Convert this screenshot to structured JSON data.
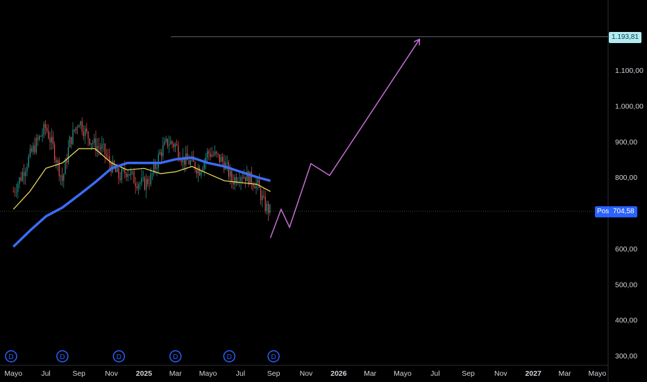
{
  "chart_data": {
    "type": "line",
    "title": "",
    "ylim": [
      280,
      1290
    ],
    "y_ticks": [
      "1.100,00",
      "1.000,00",
      "900,00",
      "800,00",
      "700,00",
      "600,00",
      "500,00",
      "400,00",
      "300,00"
    ],
    "y_tick_values": [
      1100,
      1000,
      900,
      800,
      700,
      600,
      500,
      400,
      300
    ],
    "x_ticks": [
      "Mayo",
      "Jul",
      "Sep",
      "Nov",
      "2025",
      "Mar",
      "Mayo",
      "Jul",
      "Sep",
      "Nov",
      "2026",
      "Mar",
      "Mayo",
      "Jul",
      "Sep",
      "Nov",
      "2027",
      "Mar",
      "Mayo"
    ],
    "x_ticks_bold": [
      false,
      false,
      false,
      false,
      true,
      false,
      false,
      false,
      false,
      false,
      true,
      false,
      false,
      false,
      false,
      false,
      true,
      false,
      false
    ],
    "x_tick_dates": [
      "2024-05-01",
      "2024-07-01",
      "2024-09-01",
      "2024-11-01",
      "2025-01-01",
      "2025-03-01",
      "2025-05-01",
      "2025-07-01",
      "2025-09-01",
      "2025-11-01",
      "2026-01-01",
      "2026-03-01",
      "2026-05-01",
      "2026-07-01",
      "2026-09-01",
      "2026-11-01",
      "2027-01-01",
      "2027-03-01",
      "2027-05-01"
    ],
    "price_series": {
      "name": "",
      "x": [
        "2024-05-01",
        "2024-05-15",
        "2024-06-01",
        "2024-06-15",
        "2024-07-01",
        "2024-07-15",
        "2024-08-01",
        "2024-08-15",
        "2024-09-01",
        "2024-09-15",
        "2024-10-01",
        "2024-10-15",
        "2024-11-01",
        "2024-11-15",
        "2024-12-01",
        "2024-12-15",
        "2025-01-01",
        "2025-01-15",
        "2025-02-01",
        "2025-02-15",
        "2025-03-01",
        "2025-03-15",
        "2025-04-01",
        "2025-04-15",
        "2025-05-01",
        "2025-05-15",
        "2025-06-01",
        "2025-06-15",
        "2025-07-01",
        "2025-07-15",
        "2025-08-01",
        "2025-08-15",
        "2025-08-26"
      ],
      "y": [
        760,
        800,
        860,
        900,
        940,
        880,
        790,
        900,
        960,
        920,
        890,
        880,
        830,
        800,
        820,
        790,
        780,
        800,
        870,
        900,
        890,
        850,
        840,
        820,
        870,
        860,
        840,
        790,
        810,
        800,
        780,
        720,
        705
      ]
    },
    "ma_fast": {
      "name": "",
      "color": "#f5e663",
      "x": [
        "2024-05-01",
        "2024-06-01",
        "2024-07-01",
        "2024-08-01",
        "2024-09-01",
        "2024-10-01",
        "2024-11-01",
        "2024-12-01",
        "2025-01-01",
        "2025-02-01",
        "2025-03-01",
        "2025-04-01",
        "2025-05-01",
        "2025-06-01",
        "2025-07-01",
        "2025-08-01",
        "2025-08-26"
      ],
      "y": [
        710,
        760,
        825,
        840,
        880,
        880,
        840,
        820,
        825,
        810,
        815,
        830,
        810,
        790,
        785,
        780,
        760
      ]
    },
    "ma_slow": {
      "name": "",
      "color": "#3b6cf6",
      "x": [
        "2024-05-01",
        "2024-06-01",
        "2024-07-01",
        "2024-08-01",
        "2024-09-01",
        "2024-10-01",
        "2024-11-01",
        "2024-12-01",
        "2025-01-01",
        "2025-02-01",
        "2025-03-01",
        "2025-04-01",
        "2025-05-01",
        "2025-06-01",
        "2025-07-01",
        "2025-08-01",
        "2025-08-26"
      ],
      "y": [
        605,
        650,
        690,
        715,
        750,
        785,
        825,
        840,
        840,
        840,
        850,
        855,
        840,
        830,
        815,
        800,
        790
      ]
    },
    "projection": {
      "color": "#c86fd8",
      "x": [
        "2025-08-26",
        "2025-09-15",
        "2025-10-01",
        "2025-11-10",
        "2025-12-15",
        "2026-06-01"
      ],
      "y": [
        630,
        710,
        660,
        838,
        805,
        1185
      ]
    },
    "levels": {
      "top_target": 1193.81,
      "top_target_label": "1.193,81",
      "current": 704.58,
      "current_label": "704,58",
      "current_badge": "Pos"
    },
    "dividend_markers": {
      "label": "D",
      "x": [
        "2024-04-20",
        "2024-08-01",
        "2024-11-15",
        "2025-03-01",
        "2025-06-10",
        "2025-09-01"
      ]
    },
    "colors": {
      "background": "#000000",
      "candle_up": "#26a69a",
      "candle_down": "#ef5350",
      "axis_text": "#d1d4dc",
      "marker_blue": "#2962ff"
    }
  }
}
